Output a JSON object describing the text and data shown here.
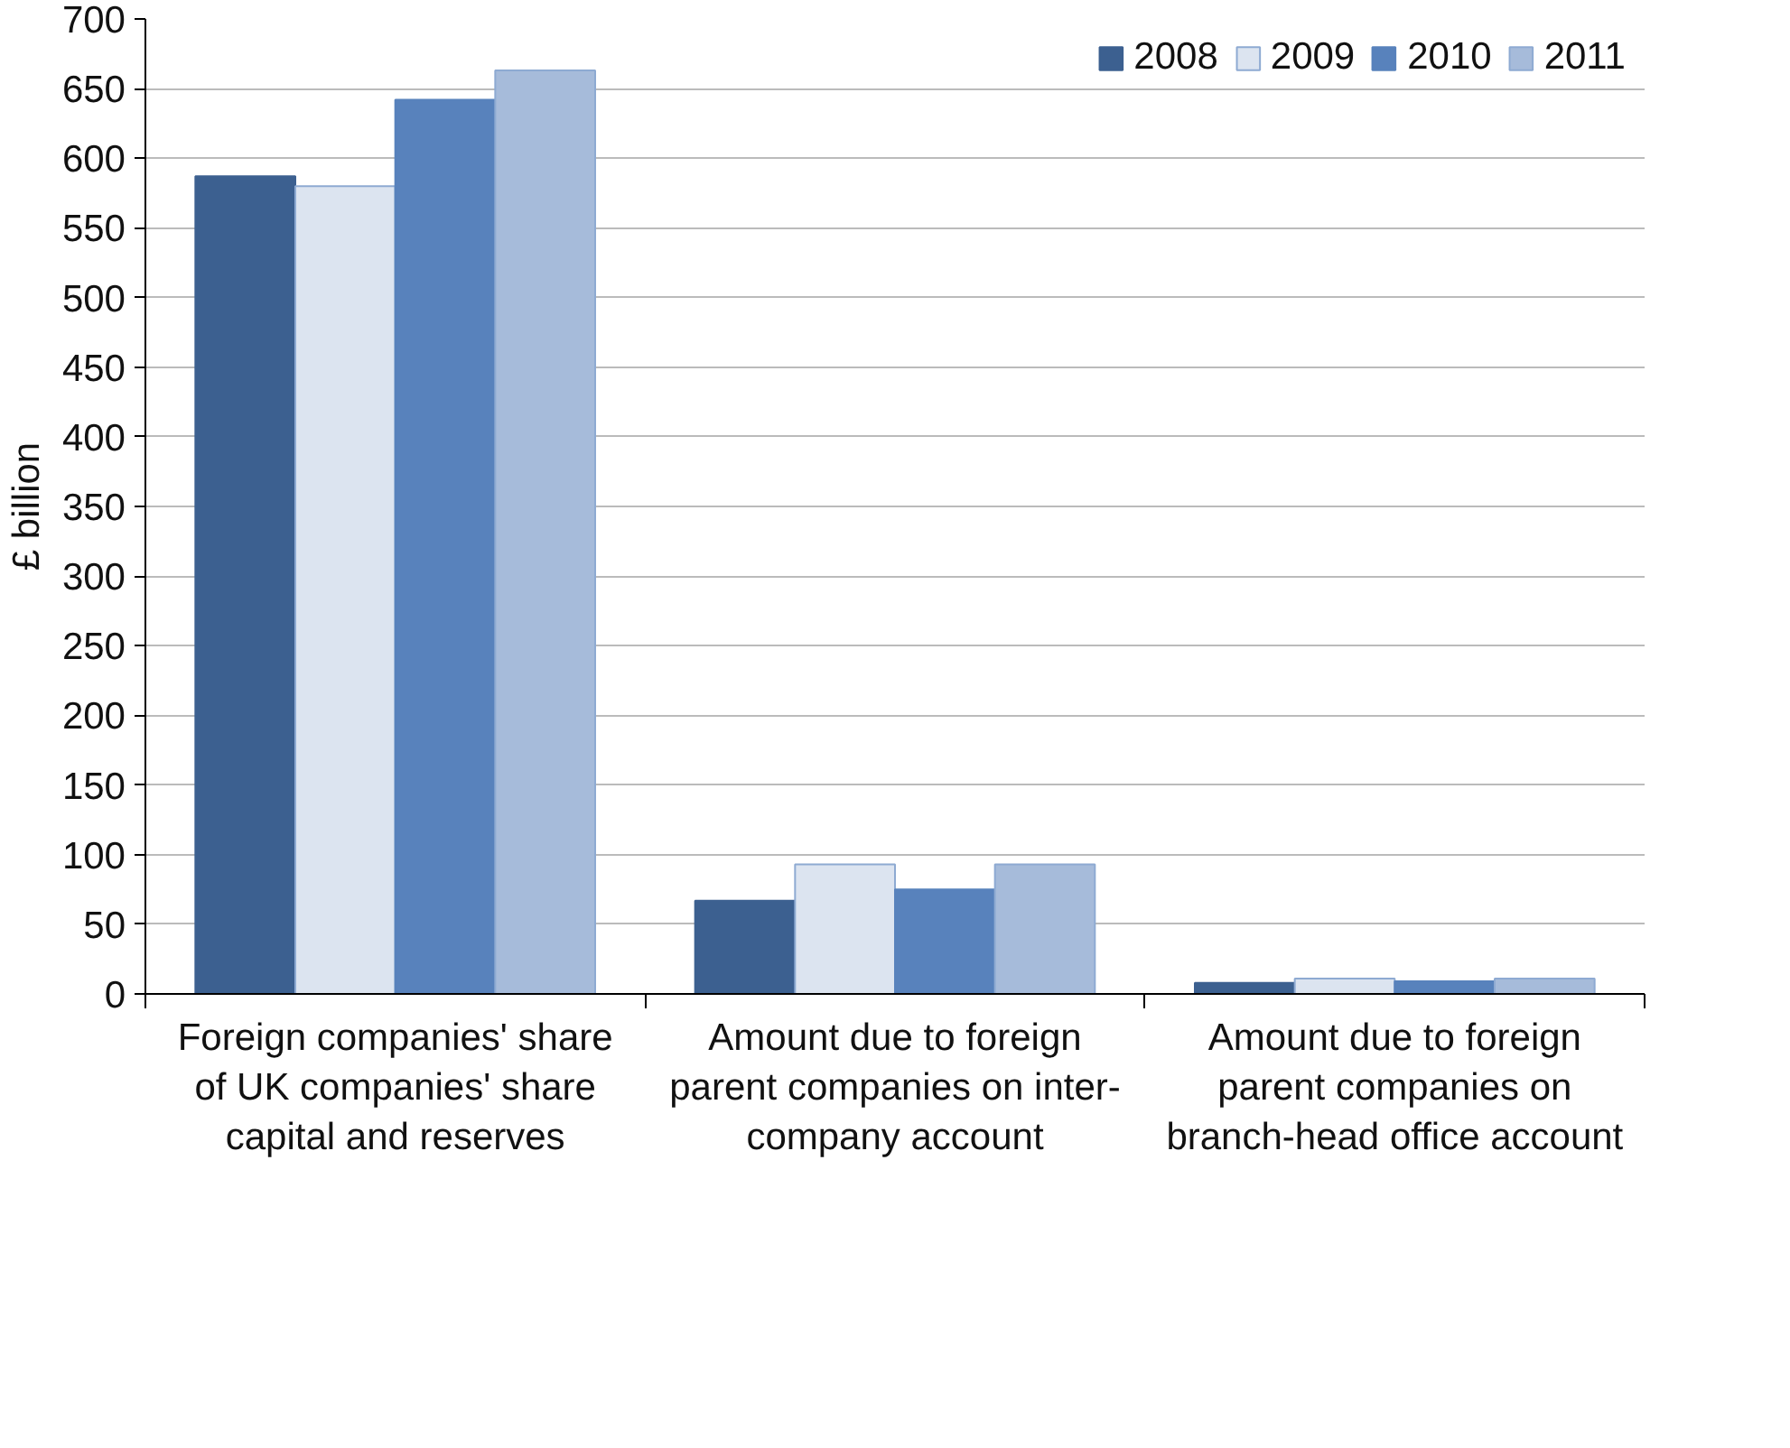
{
  "chart_data": {
    "type": "bar",
    "ylabel": "£ billion",
    "categories": [
      "Foreign companies' share of UK companies' share capital and reserves",
      "Amount due to foreign parent companies on inter-company account",
      "Amount due to foreign parent companies on branch-head office account"
    ],
    "series": [
      {
        "name": "2008",
        "color": "#3c6090",
        "values": [
          587,
          67,
          8
        ]
      },
      {
        "name": "2009",
        "color": "#dce4f0",
        "values": [
          580,
          93,
          11
        ]
      },
      {
        "name": "2010",
        "color": "#5882bc",
        "values": [
          642,
          75,
          9
        ]
      },
      {
        "name": "2011",
        "color": "#a6bbda",
        "values": [
          663,
          93,
          11
        ]
      }
    ],
    "ylim": [
      0,
      700
    ],
    "yticks": [
      0,
      50,
      100,
      150,
      200,
      250,
      300,
      350,
      400,
      450,
      500,
      550,
      600,
      650,
      700
    ],
    "grid": "y",
    "legend": "top right"
  }
}
